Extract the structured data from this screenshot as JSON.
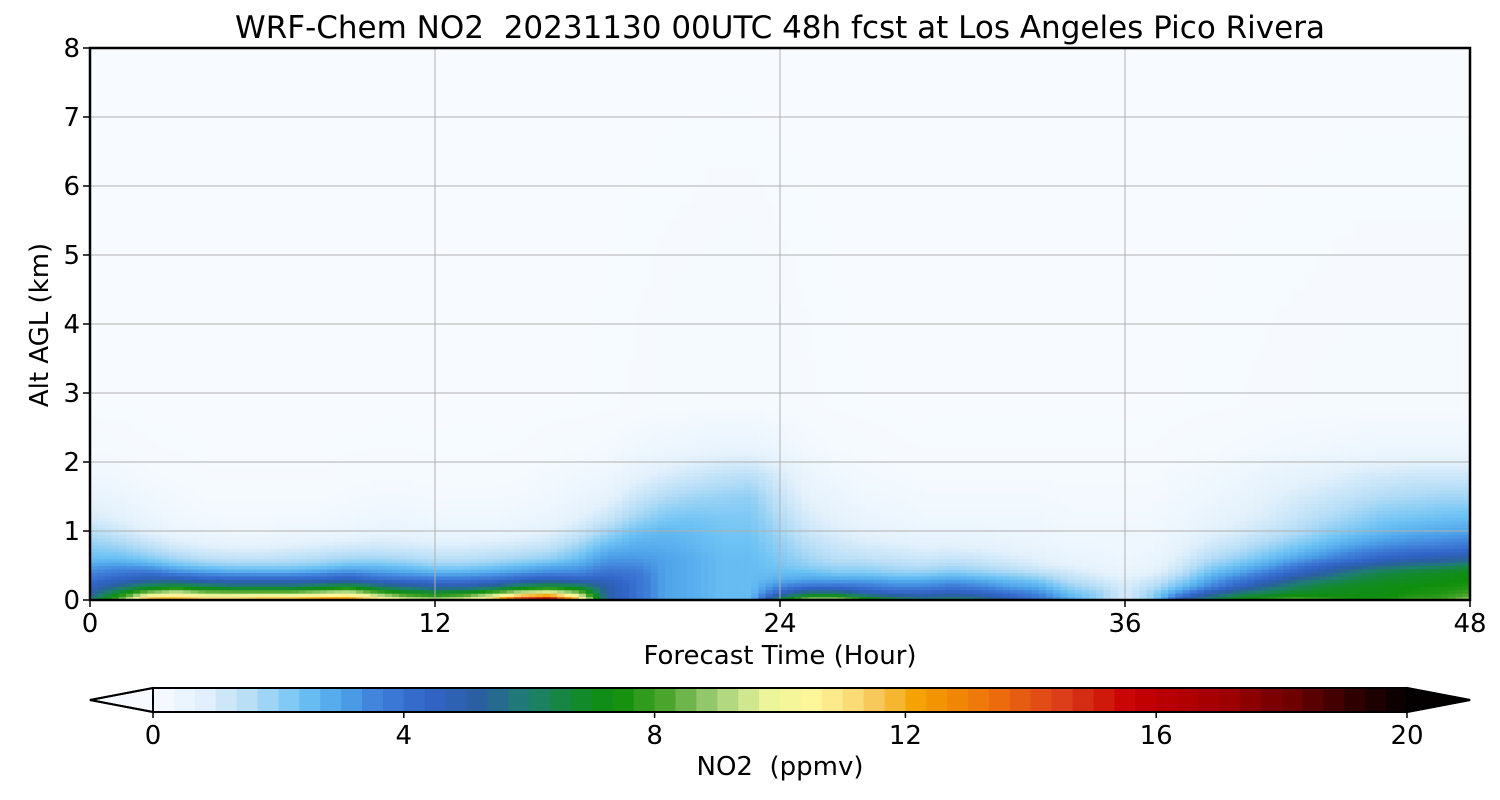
{
  "chart_data": {
    "type": "heatmap",
    "title": "WRF-Chem NO2  20231130 00UTC 48h fcst at Los Angeles Pico Rivera",
    "xlabel": "Forecast Time (Hour)",
    "ylabel": "Alt AGL (km)",
    "xlim": [
      0,
      48
    ],
    "ylim": [
      0,
      8
    ],
    "xticks": [
      0,
      12,
      24,
      36,
      48
    ],
    "yticks": [
      0,
      1,
      2,
      3,
      4,
      5,
      6,
      7,
      8
    ],
    "grid": true,
    "colorbar": {
      "label": "NO2  (ppmv)",
      "ticks": [
        0,
        4,
        8,
        12,
        16,
        20
      ],
      "range": [
        0,
        20
      ],
      "extend": "both",
      "orientation": "horizontal"
    },
    "x": [
      0,
      1,
      2,
      3,
      4,
      5,
      6,
      7,
      8,
      9,
      10,
      11,
      12,
      13,
      14,
      15,
      16,
      17,
      18,
      19,
      20,
      21,
      22,
      23,
      24,
      25,
      26,
      27,
      28,
      29,
      30,
      31,
      32,
      33,
      34,
      35,
      36,
      37,
      38,
      39,
      40,
      41,
      42,
      43,
      44,
      45,
      46,
      47,
      48
    ],
    "y": [
      0,
      0.1,
      0.2,
      0.3,
      0.4,
      0.5,
      0.6,
      0.8,
      1.0,
      1.2,
      1.5,
      1.8,
      2.2,
      2.8,
      8
    ],
    "values": [
      [
        6.0,
        8.5,
        12.5,
        12.5,
        12.0,
        12.0,
        12.5,
        12.5,
        13.0,
        13.0,
        11.5,
        10.0,
        9.5,
        10.0,
        12.0,
        16.0,
        17.0,
        12.0,
        5.0,
        4.0,
        3.0,
        2.8,
        2.5,
        2.5,
        7.0,
        9.5,
        9.5,
        8.0,
        7.0,
        6.0,
        6.5,
        6.0,
        5.0,
        4.0,
        3.0,
        2.0,
        1.0,
        2.0,
        5.0,
        6.5,
        7.5,
        8.0,
        8.5,
        8.0,
        7.5,
        7.5,
        8.0,
        8.0,
        9.0
      ],
      [
        5.0,
        7.0,
        9.0,
        10.0,
        9.0,
        9.0,
        9.0,
        9.0,
        9.5,
        10.0,
        8.5,
        7.5,
        7.0,
        7.5,
        8.5,
        10.0,
        10.5,
        9.0,
        5.0,
        4.0,
        3.0,
        2.8,
        2.5,
        2.5,
        4.5,
        6.0,
        6.0,
        5.0,
        4.5,
        4.5,
        4.8,
        4.5,
        4.0,
        3.5,
        2.5,
        2.0,
        1.0,
        2.0,
        3.5,
        5.0,
        6.0,
        6.5,
        7.0,
        7.0,
        7.2,
        7.2,
        7.5,
        7.6,
        8.0
      ],
      [
        4.5,
        5.5,
        6.5,
        7.0,
        6.5,
        6.0,
        6.0,
        6.0,
        6.5,
        7.0,
        6.0,
        5.5,
        5.0,
        5.0,
        5.5,
        6.5,
        7.0,
        6.5,
        5.0,
        4.0,
        3.0,
        2.8,
        2.5,
        2.5,
        3.5,
        4.0,
        4.0,
        3.8,
        3.5,
        3.5,
        3.8,
        3.5,
        3.0,
        2.8,
        2.0,
        1.5,
        1.0,
        1.5,
        2.5,
        3.5,
        4.5,
        5.5,
        6.2,
        6.8,
        7.0,
        7.2,
        7.4,
        7.5,
        7.6
      ],
      [
        4.0,
        4.5,
        5.0,
        5.0,
        4.5,
        4.5,
        4.5,
        4.5,
        4.5,
        4.8,
        4.2,
        4.0,
        3.8,
        3.8,
        4.0,
        4.5,
        4.8,
        4.5,
        4.5,
        4.0,
        3.0,
        2.8,
        2.5,
        2.5,
        2.8,
        3.0,
        3.0,
        3.0,
        2.8,
        2.8,
        3.0,
        2.8,
        2.5,
        2.2,
        1.5,
        1.2,
        0.8,
        1.2,
        2.0,
        3.0,
        3.8,
        4.5,
        5.5,
        6.0,
        6.5,
        6.8,
        7.0,
        7.2,
        7.4
      ],
      [
        3.5,
        3.8,
        4.0,
        3.5,
        3.2,
        3.0,
        3.0,
        3.0,
        3.2,
        3.5,
        3.2,
        3.0,
        2.8,
        2.8,
        3.0,
        3.2,
        3.5,
        3.5,
        4.0,
        3.8,
        3.0,
        2.8,
        2.5,
        2.5,
        2.5,
        2.5,
        2.2,
        2.2,
        2.0,
        2.0,
        2.2,
        2.0,
        1.8,
        1.5,
        1.2,
        0.8,
        0.6,
        0.8,
        1.5,
        2.5,
        3.0,
        3.8,
        4.5,
        5.2,
        6.0,
        6.5,
        6.8,
        7.0,
        7.2
      ],
      [
        3.0,
        3.2,
        3.0,
        2.5,
        2.2,
        2.0,
        2.0,
        2.0,
        2.2,
        2.5,
        2.5,
        2.3,
        2.0,
        2.0,
        2.2,
        2.5,
        2.8,
        3.0,
        3.5,
        3.5,
        3.0,
        2.8,
        2.5,
        2.5,
        2.3,
        2.0,
        1.8,
        1.8,
        1.6,
        1.5,
        1.7,
        1.5,
        1.3,
        1.0,
        0.8,
        0.6,
        0.4,
        0.6,
        1.2,
        2.0,
        2.5,
        3.0,
        3.8,
        4.5,
        5.0,
        5.5,
        5.8,
        6.0,
        6.5
      ],
      [
        2.5,
        2.5,
        2.2,
        1.8,
        1.5,
        1.4,
        1.4,
        1.5,
        1.6,
        1.8,
        1.8,
        1.7,
        1.5,
        1.5,
        1.6,
        1.8,
        2.0,
        2.5,
        3.2,
        3.2,
        3.0,
        2.8,
        2.5,
        2.5,
        2.2,
        1.8,
        1.5,
        1.4,
        1.3,
        1.2,
        1.3,
        1.2,
        1.0,
        0.8,
        0.6,
        0.5,
        0.4,
        0.5,
        1.0,
        1.6,
        2.0,
        2.5,
        3.0,
        3.5,
        4.0,
        4.5,
        4.8,
        5.0,
        5.2
      ],
      [
        2.0,
        1.8,
        1.4,
        1.0,
        0.8,
        0.7,
        0.7,
        0.8,
        0.9,
        1.0,
        1.1,
        1.0,
        0.9,
        0.9,
        1.0,
        1.1,
        1.3,
        1.8,
        2.5,
        2.8,
        2.8,
        2.6,
        2.4,
        2.4,
        2.0,
        1.5,
        1.2,
        1.0,
        0.9,
        0.8,
        0.8,
        0.7,
        0.6,
        0.5,
        0.4,
        0.4,
        0.3,
        0.4,
        0.7,
        1.1,
        1.4,
        1.8,
        2.2,
        2.6,
        3.0,
        3.3,
        3.5,
        3.6,
        3.8
      ],
      [
        1.5,
        1.2,
        0.8,
        0.5,
        0.4,
        0.3,
        0.3,
        0.4,
        0.4,
        0.5,
        0.6,
        0.6,
        0.5,
        0.5,
        0.5,
        0.6,
        0.8,
        1.2,
        1.8,
        2.4,
        2.6,
        2.5,
        2.3,
        2.3,
        1.8,
        1.2,
        0.9,
        0.7,
        0.6,
        0.5,
        0.5,
        0.5,
        0.4,
        0.4,
        0.3,
        0.3,
        0.3,
        0.3,
        0.5,
        0.8,
        1.0,
        1.3,
        1.6,
        2.0,
        2.3,
        2.6,
        2.8,
        2.9,
        3.0
      ],
      [
        1.0,
        0.8,
        0.5,
        0.3,
        0.2,
        0.2,
        0.2,
        0.2,
        0.2,
        0.3,
        0.35,
        0.35,
        0.3,
        0.3,
        0.3,
        0.4,
        0.5,
        0.8,
        1.2,
        1.8,
        2.2,
        2.3,
        2.2,
        2.2,
        1.6,
        1.0,
        0.7,
        0.5,
        0.4,
        0.3,
        0.3,
        0.3,
        0.3,
        0.3,
        0.2,
        0.2,
        0.2,
        0.2,
        0.4,
        0.6,
        0.8,
        1.0,
        1.3,
        1.6,
        1.9,
        2.2,
        2.3,
        2.4,
        2.5
      ],
      [
        0.6,
        0.5,
        0.3,
        0.2,
        0.1,
        0.1,
        0.1,
        0.1,
        0.1,
        0.15,
        0.2,
        0.2,
        0.15,
        0.15,
        0.15,
        0.2,
        0.3,
        0.5,
        0.7,
        1.2,
        1.6,
        1.8,
        1.9,
        2.0,
        1.3,
        0.7,
        0.5,
        0.3,
        0.25,
        0.2,
        0.2,
        0.2,
        0.2,
        0.2,
        0.15,
        0.15,
        0.15,
        0.15,
        0.3,
        0.4,
        0.6,
        0.8,
        1.0,
        1.2,
        1.4,
        1.6,
        1.7,
        1.8,
        1.8
      ],
      [
        0.3,
        0.25,
        0.15,
        0.1,
        0.05,
        0.05,
        0.05,
        0.05,
        0.05,
        0.08,
        0.1,
        0.1,
        0.08,
        0.08,
        0.08,
        0.1,
        0.2,
        0.3,
        0.4,
        0.7,
        1.0,
        1.2,
        1.4,
        1.5,
        1.0,
        0.5,
        0.3,
        0.2,
        0.15,
        0.1,
        0.1,
        0.1,
        0.1,
        0.1,
        0.1,
        0.1,
        0.1,
        0.1,
        0.2,
        0.3,
        0.4,
        0.6,
        0.7,
        0.8,
        1.0,
        1.1,
        1.2,
        1.2,
        1.2
      ],
      [
        0.1,
        0.08,
        0.05,
        0.03,
        0.02,
        0.02,
        0.02,
        0.02,
        0.02,
        0.03,
        0.04,
        0.04,
        0.03,
        0.03,
        0.03,
        0.04,
        0.08,
        0.1,
        0.15,
        0.3,
        0.4,
        0.5,
        0.6,
        0.6,
        0.4,
        0.2,
        0.1,
        0.08,
        0.05,
        0.04,
        0.04,
        0.04,
        0.04,
        0.04,
        0.04,
        0.04,
        0.04,
        0.04,
        0.08,
        0.1,
        0.15,
        0.2,
        0.25,
        0.3,
        0.35,
        0.4,
        0.4,
        0.4,
        0.4
      ],
      [
        0.02,
        0.02,
        0.01,
        0.01,
        0.01,
        0.01,
        0.01,
        0.01,
        0.01,
        0.01,
        0.01,
        0.01,
        0.01,
        0.01,
        0.01,
        0.01,
        0.02,
        0.02,
        0.03,
        0.05,
        0.08,
        0.1,
        0.12,
        0.12,
        0.08,
        0.05,
        0.03,
        0.02,
        0.02,
        0.01,
        0.01,
        0.01,
        0.01,
        0.01,
        0.01,
        0.01,
        0.01,
        0.01,
        0.02,
        0.03,
        0.04,
        0.05,
        0.06,
        0.07,
        0.08,
        0.08,
        0.08,
        0.08,
        0.08
      ],
      [
        0,
        0,
        0,
        0,
        0,
        0,
        0,
        0,
        0,
        0,
        0,
        0,
        0,
        0,
        0,
        0,
        0,
        0,
        0,
        0,
        0,
        0,
        0,
        0,
        0,
        0,
        0,
        0,
        0,
        0,
        0,
        0,
        0,
        0,
        0,
        0,
        0,
        0,
        0,
        0,
        0,
        0,
        0,
        0,
        0,
        0,
        0,
        0,
        0
      ]
    ],
    "colormap": [
      [
        0,
        "#f7fbff"
      ],
      [
        0.8,
        "#e3f1fc"
      ],
      [
        1.6,
        "#b3dcf6"
      ],
      [
        2.4,
        "#6cc2f4"
      ],
      [
        3.0,
        "#4fa4ea"
      ],
      [
        3.6,
        "#3f7fd9"
      ],
      [
        4.4,
        "#3164c7"
      ],
      [
        5.2,
        "#2a5fa0"
      ],
      [
        6.0,
        "#1e7f6e"
      ],
      [
        6.8,
        "#128a2c"
      ],
      [
        7.4,
        "#0f8f0b"
      ],
      [
        8.2,
        "#4ea62e"
      ],
      [
        9.0,
        "#a4d07c"
      ],
      [
        9.8,
        "#ecf59a"
      ],
      [
        10.6,
        "#fff79a"
      ],
      [
        11.4,
        "#f8cf67"
      ],
      [
        12.2,
        "#f5a000"
      ],
      [
        13.4,
        "#ee6f0c"
      ],
      [
        14.6,
        "#d93a1a"
      ],
      [
        15.6,
        "#c70000"
      ],
      [
        17.0,
        "#a30000"
      ],
      [
        18.2,
        "#6d0000"
      ],
      [
        19.2,
        "#2c0000"
      ],
      [
        20,
        "#050000"
      ]
    ]
  }
}
